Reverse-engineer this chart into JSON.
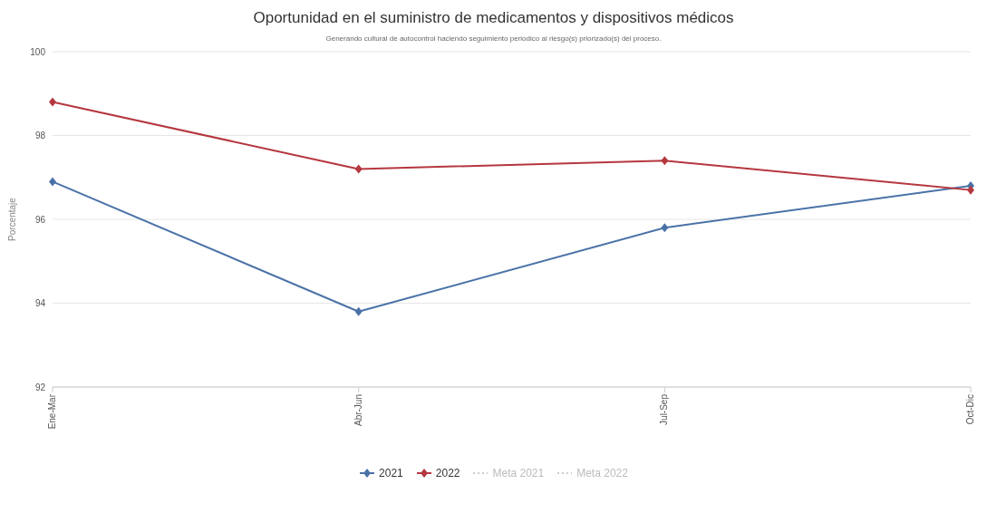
{
  "chart_data": {
    "type": "line",
    "title": "Oportunidad en el suministro de medicamentos y dispositivos médicos",
    "subtitle": "Generando cultural de autocontrol haciendo seguimiento periodico al riesgo(s) priorizado(s) del proceso.",
    "ylabel": "Porcentaje",
    "categories": [
      "Ene-Mar",
      "Abr-Jun",
      "Jul-Sep",
      "Oct-Dic"
    ],
    "series": [
      {
        "name": "2021",
        "color": "#4a72a8",
        "values": [
          96.9,
          93.8,
          95.8,
          96.8
        ]
      },
      {
        "name": "2022",
        "color": "#b5373f",
        "values": [
          98.8,
          97.2,
          97.4,
          96.7
        ]
      },
      {
        "name": "Meta 2021",
        "color": "#cccccc",
        "line_style": "dotted",
        "values": [
          null,
          null,
          null,
          null
        ]
      },
      {
        "name": "Meta 2022",
        "color": "#cccccc",
        "line_style": "dotted",
        "values": [
          null,
          null,
          null,
          null
        ]
      }
    ],
    "ylim": [
      92,
      100
    ],
    "yticks": [
      92,
      94,
      96,
      98,
      100
    ],
    "grid": "y",
    "legend": "bottom",
    "marker": "diamond",
    "line_style": "solid"
  }
}
